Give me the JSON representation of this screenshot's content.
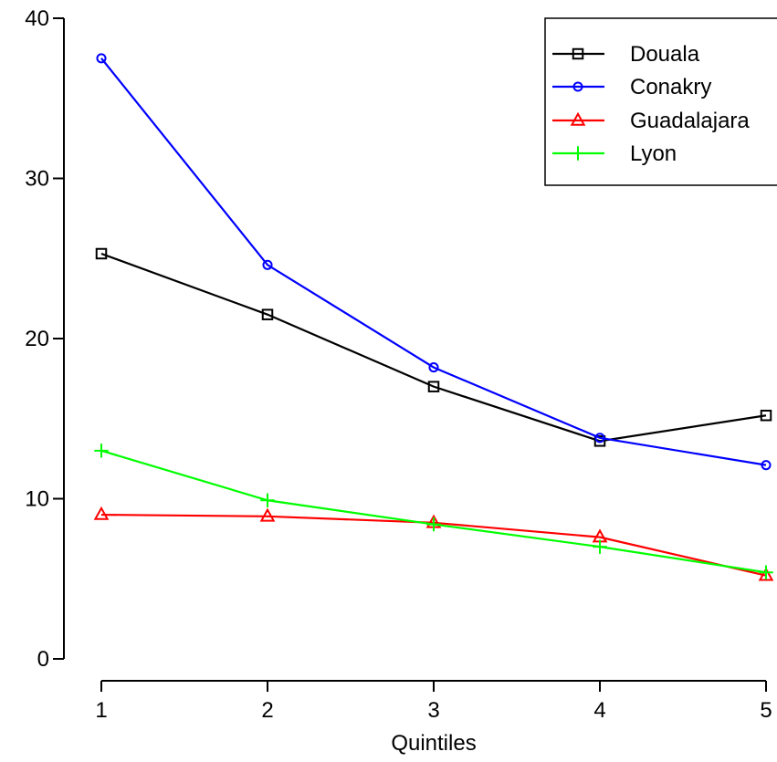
{
  "chart_data": {
    "type": "line",
    "title": "",
    "xlabel": "Quintiles",
    "ylabel": "",
    "x": [
      1,
      2,
      3,
      4,
      5
    ],
    "xlim": [
      1,
      5
    ],
    "ylim": [
      0,
      40
    ],
    "xticks": [
      1,
      2,
      3,
      4,
      5
    ],
    "yticks": [
      0,
      10,
      20,
      30,
      40
    ],
    "grid": false,
    "legend_position": "top-right",
    "series": [
      {
        "name": "Douala",
        "marker": "square",
        "color": "#000000",
        "values": [
          25.3,
          21.5,
          17.0,
          13.6,
          15.2
        ]
      },
      {
        "name": "Conakry",
        "marker": "circle",
        "color": "#0000ff",
        "values": [
          37.5,
          24.6,
          18.2,
          13.8,
          12.1
        ]
      },
      {
        "name": "Guadalajara",
        "marker": "triangle",
        "color": "#ff0000",
        "values": [
          9.0,
          8.9,
          8.5,
          7.6,
          5.2
        ]
      },
      {
        "name": "Lyon",
        "marker": "plus",
        "color": "#00ff00",
        "values": [
          13.0,
          9.9,
          8.4,
          7.0,
          5.4
        ]
      }
    ]
  }
}
